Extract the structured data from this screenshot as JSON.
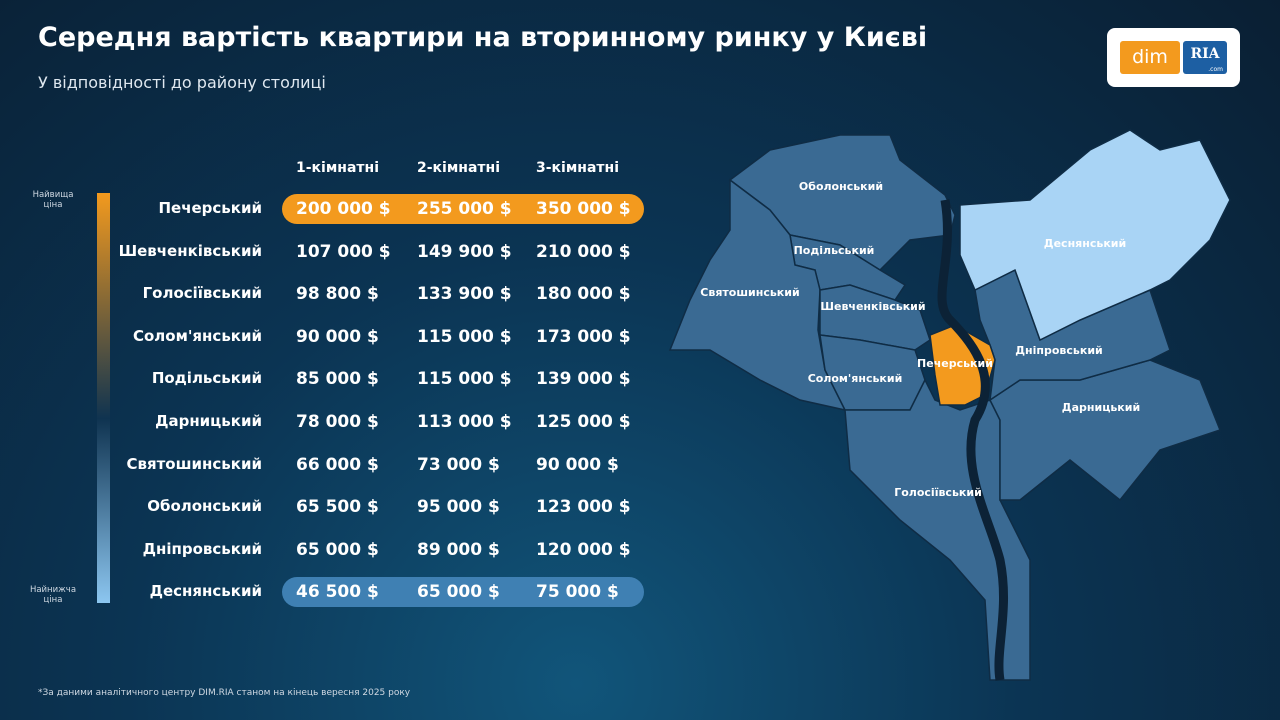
{
  "header": {
    "title": "Середня вартість квартири на вторинному ринку у Києві",
    "subtitle": "У відповідності до району столиці"
  },
  "logo": {
    "left": "dim",
    "right": "RIA",
    "sub": ".com"
  },
  "legend": {
    "high": "Найвища ціна",
    "low": "Найнижча ціна"
  },
  "table": {
    "columns": [
      "1-кімнатні",
      "2-кімнатні",
      "3-кімнатні"
    ],
    "rows": [
      [
        "Печерський",
        "200 000 $",
        "255 000 $",
        "350 000 $"
      ],
      [
        "Шевченківський",
        "107 000 $",
        "149 900 $",
        "210 000 $"
      ],
      [
        "Голосіївський",
        "98 800 $",
        "133 900 $",
        "180 000 $"
      ],
      [
        "Солом'янський",
        "90 000 $",
        "115 000 $",
        "173 000 $"
      ],
      [
        "Подільський",
        "85 000 $",
        "115 000 $",
        "139 000 $"
      ],
      [
        "Дарницький",
        "78 000 $",
        "113 000 $",
        "125 000 $"
      ],
      [
        "Святошинський",
        "66 000 $",
        "73 000 $",
        "90 000 $"
      ],
      [
        "Оболонський",
        "65 500 $",
        "95 000 $",
        "123 000 $"
      ],
      [
        "Дніпровський",
        "65 000 $",
        "89 000 $",
        "120 000 $"
      ],
      [
        "Деснянський",
        "46 500 $",
        "65 000 $",
        "75 000 $"
      ]
    ]
  },
  "map": {
    "labels": [
      "Оболонський",
      "Подільський",
      "Святошинський",
      "Шевченківський",
      "Солом'янський",
      "Печерський",
      "Голосіївський",
      "Дарницький",
      "Дніпровський",
      "Деснянський"
    ]
  },
  "footnote": "*За даними аналітичного центру DIM.RIA станом на кінець вересня 2025 року"
}
